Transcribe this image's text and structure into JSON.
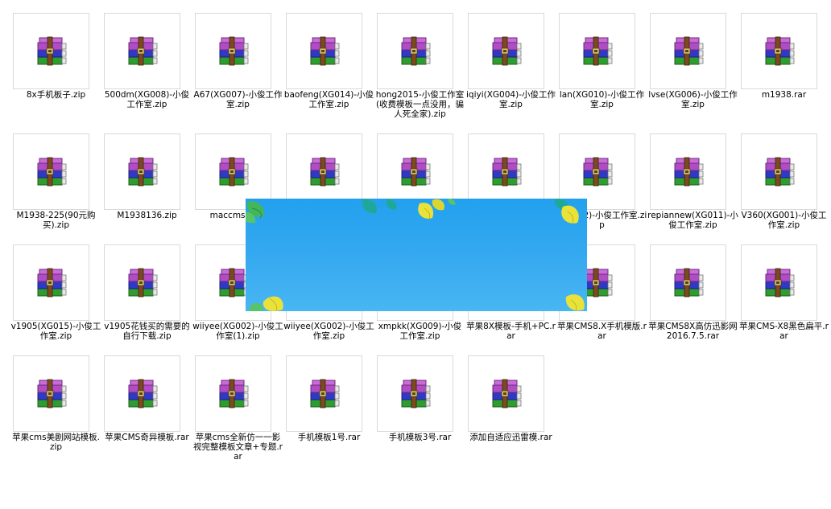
{
  "files": [
    {
      "name": "8x手机板子.zip"
    },
    {
      "name": "500dm(XG008)-小俊工作室.zip"
    },
    {
      "name": "A67(XG007)-小俊工作室.zip"
    },
    {
      "name": "baofeng(XG014)-小俊工作室.zip"
    },
    {
      "name": "hong2015-小俊工作室(收费模板一点没用，骗人死全家).zip"
    },
    {
      "name": "iqiyi(XG004)-小俊工作室.zip"
    },
    {
      "name": "lan(XG010)-小俊工作室.zip"
    },
    {
      "name": "lvse(XG006)-小俊工作室.zip"
    },
    {
      "name": "m1938.rar"
    },
    {
      "name": "M1938-225(90元购买).zip"
    },
    {
      "name": "M1938136.zip"
    },
    {
      "name": "maccms8_mf"
    },
    {
      "name": ""
    },
    {
      "name": ""
    },
    {
      "name": ""
    },
    {
      "name": "(XG012)-小俊工作室.zip"
    },
    {
      "name": "repiannew(XG011)-小俊工作室.zip"
    },
    {
      "name": "V360(XG001)-小俊工作室.zip"
    },
    {
      "name": "v1905(XG015)-小俊工作室.zip"
    },
    {
      "name": "v1905花钱买的需要的自行下载.zip"
    },
    {
      "name": "wiiyee(XG002)-小俊工作室(1).zip"
    },
    {
      "name": "wiiyee(XG002)-小俊工作室.zip"
    },
    {
      "name": "xmpkk(XG009)-小俊工作室.zip"
    },
    {
      "name": "苹果8X模板-手机+PC.rar"
    },
    {
      "name": "苹果CMS8.X手机模版.rar"
    },
    {
      "name": "苹果CMS8X高仿迅影网2016.7.5.rar"
    },
    {
      "name": "苹果CMS-X8黑色扁平.rar"
    },
    {
      "name": "苹果cms美剧网站模板.zip"
    },
    {
      "name": "苹果CMS奇异模板.rar"
    },
    {
      "name": "苹果cms全新仿一一影视完整模板文章+专题.rar"
    },
    {
      "name": "手机模板1号.rar"
    },
    {
      "name": "手机模板3号.rar"
    },
    {
      "name": "添加自适应迅雷模.rar"
    }
  ],
  "icons": {
    "file_icon": "winrar-archive-icon"
  },
  "colors": {
    "popup_sky": "#2aa3ee",
    "leaf_yellow": "#e8e23a",
    "leaf_green": "#3cb371",
    "leaf_teal": "#1fa89a"
  }
}
